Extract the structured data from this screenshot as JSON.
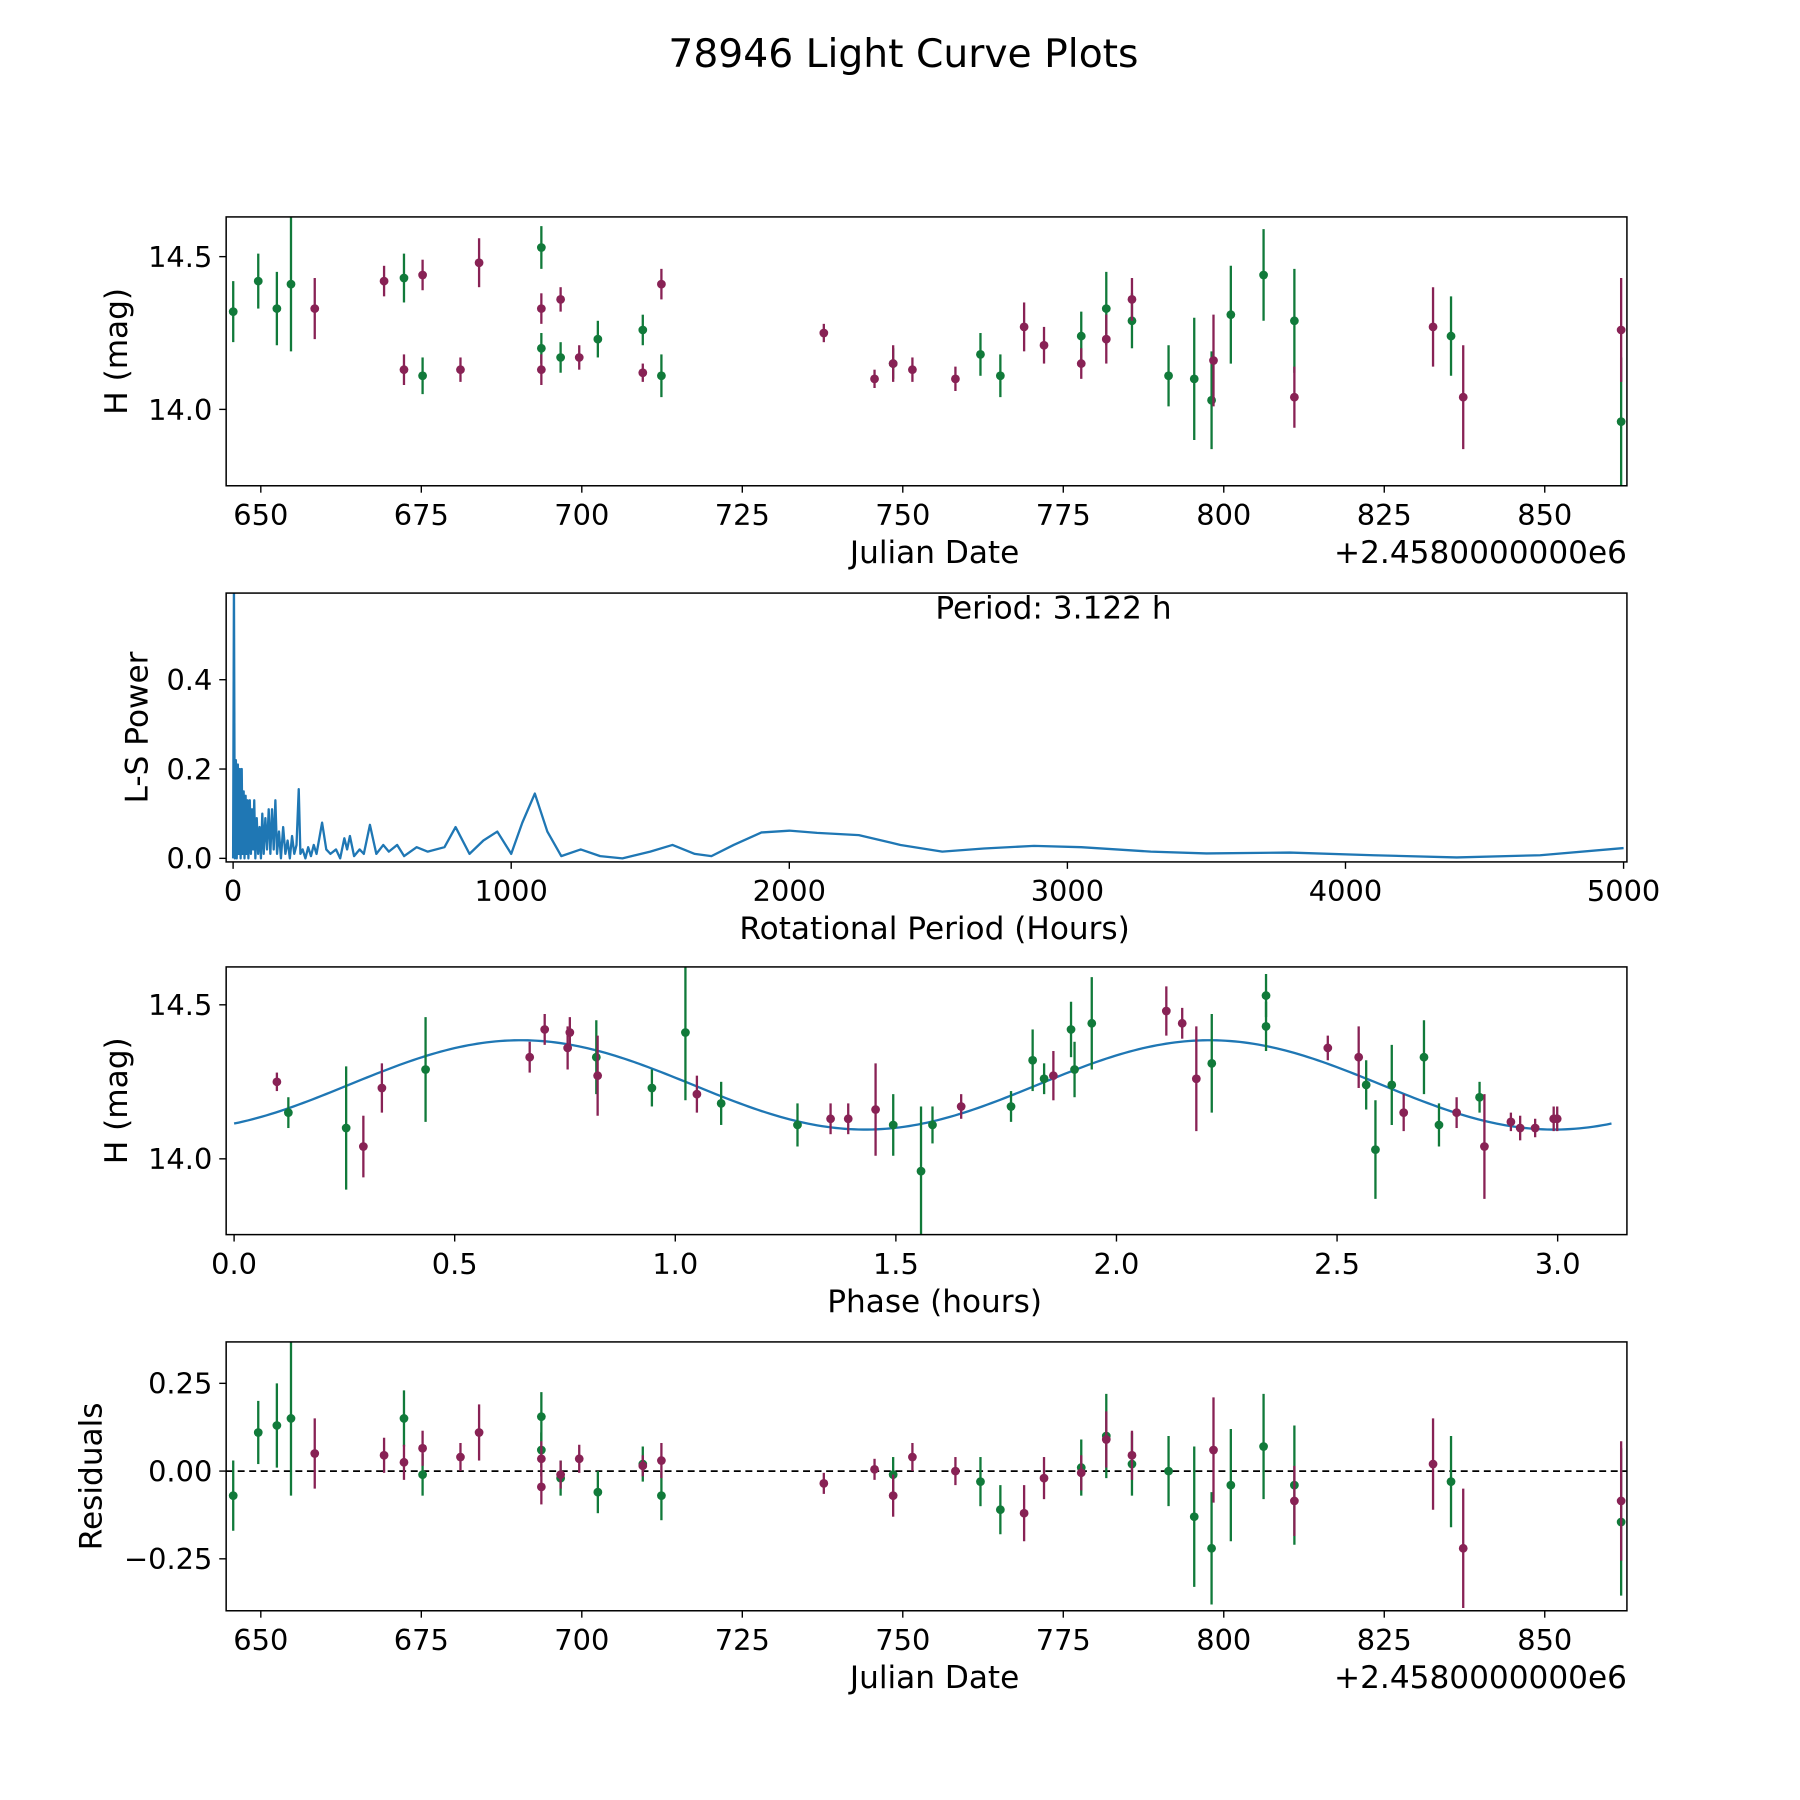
{
  "figure_title": "78946 Light Curve Plots",
  "colors": {
    "green": "#117a3a",
    "purple": "#882255",
    "line": "#1f77b4",
    "zero_line": "#000000"
  },
  "chart_data": [
    {
      "id": "lightcurve",
      "type": "scatter",
      "xlabel": "Julian Date",
      "ylabel": "H (mag)",
      "offset_text": "+2.4580000000e6",
      "xlim": [
        644.6,
        862.8
      ],
      "ylim": [
        13.75,
        14.63
      ],
      "xticks": [
        650,
        675,
        700,
        725,
        750,
        775,
        800,
        825,
        850
      ],
      "xtick_labels": [
        "650",
        "675",
        "700",
        "725",
        "750",
        "775",
        "800",
        "825",
        "850"
      ],
      "yticks": [
        14.0,
        14.5
      ],
      "ytick_labels": [
        "14.0",
        "14.5"
      ]
    },
    {
      "id": "periodogram",
      "type": "line",
      "xlabel": "Rotational Period (Hours)",
      "ylabel": "L-S Power",
      "annotation": "Period: 3.122 h",
      "xlim": [
        -25,
        5012
      ],
      "ylim": [
        -0.008,
        0.594
      ],
      "xticks": [
        0,
        1000,
        2000,
        3000,
        4000,
        5000
      ],
      "xtick_labels": [
        "0",
        "1000",
        "2000",
        "3000",
        "4000",
        "5000"
      ],
      "yticks": [
        0.0,
        0.2,
        0.4
      ],
      "ytick_labels": [
        "0.0",
        "0.2",
        "0.4"
      ],
      "points": [
        [
          0,
          0
        ],
        [
          3,
          0.62
        ],
        [
          6,
          0.0
        ],
        [
          10,
          0.22
        ],
        [
          13,
          0.0
        ],
        [
          17,
          0.21
        ],
        [
          20,
          0.01
        ],
        [
          24,
          0.2
        ],
        [
          27,
          0.0
        ],
        [
          31,
          0.2
        ],
        [
          34,
          0.01
        ],
        [
          38,
          0.15
        ],
        [
          41,
          0
        ],
        [
          45,
          0.14
        ],
        [
          48,
          0.01
        ],
        [
          52,
          0.13
        ],
        [
          55,
          0
        ],
        [
          60,
          0.13
        ],
        [
          64,
          0.01
        ],
        [
          68,
          0.11
        ],
        [
          72,
          0.02
        ],
        [
          76,
          0.13
        ],
        [
          80,
          0
        ],
        [
          85,
          0.09
        ],
        [
          90,
          0.01
        ],
        [
          95,
          0.07
        ],
        [
          100,
          0
        ],
        [
          105,
          0.1
        ],
        [
          110,
          0.01
        ],
        [
          116,
          0.09
        ],
        [
          122,
          0.02
        ],
        [
          128,
          0.11
        ],
        [
          134,
          0.01
        ],
        [
          140,
          0.11
        ],
        [
          146,
          0.02
        ],
        [
          152,
          0.13
        ],
        [
          158,
          0.01
        ],
        [
          165,
          0.06
        ],
        [
          172,
          0
        ],
        [
          180,
          0.07
        ],
        [
          188,
          0.01
        ],
        [
          196,
          0.04
        ],
        [
          204,
          0.0
        ],
        [
          212,
          0.05
        ],
        [
          220,
          0.01
        ],
        [
          228,
          0.03
        ],
        [
          236,
          0.155
        ],
        [
          242,
          0.01
        ],
        [
          250,
          0.02
        ],
        [
          260,
          0.0
        ],
        [
          270,
          0.025
        ],
        [
          280,
          0.005
        ],
        [
          290,
          0.03
        ],
        [
          300,
          0.01
        ],
        [
          320,
          0.08
        ],
        [
          335,
          0.02
        ],
        [
          350,
          0.01
        ],
        [
          370,
          0.02
        ],
        [
          385,
          0.0
        ],
        [
          400,
          0.045
        ],
        [
          410,
          0.02
        ],
        [
          420,
          0.05
        ],
        [
          435,
          0.005
        ],
        [
          455,
          0.02
        ],
        [
          470,
          0.01
        ],
        [
          492,
          0.075
        ],
        [
          515,
          0.01
        ],
        [
          540,
          0.03
        ],
        [
          560,
          0.015
        ],
        [
          590,
          0.03
        ],
        [
          615,
          0.005
        ],
        [
          660,
          0.025
        ],
        [
          700,
          0.015
        ],
        [
          760,
          0.025
        ],
        [
          800,
          0.07
        ],
        [
          850,
          0.01
        ],
        [
          900,
          0.04
        ],
        [
          950,
          0.06
        ],
        [
          1000,
          0.01
        ],
        [
          1040,
          0.08
        ],
        [
          1085,
          0.145
        ],
        [
          1130,
          0.06
        ],
        [
          1180,
          0.005
        ],
        [
          1250,
          0.02
        ],
        [
          1320,
          0.005
        ],
        [
          1400,
          0.0
        ],
        [
          1500,
          0.015
        ],
        [
          1580,
          0.03
        ],
        [
          1660,
          0.01
        ],
        [
          1720,
          0.005
        ],
        [
          1800,
          0.03
        ],
        [
          1900,
          0.058
        ],
        [
          2000,
          0.062
        ],
        [
          2100,
          0.057
        ],
        [
          2250,
          0.052
        ],
        [
          2400,
          0.03
        ],
        [
          2550,
          0.015
        ],
        [
          2700,
          0.022
        ],
        [
          2880,
          0.028
        ],
        [
          3050,
          0.025
        ],
        [
          3300,
          0.015
        ],
        [
          3500,
          0.011
        ],
        [
          3800,
          0.013
        ],
        [
          4100,
          0.007
        ],
        [
          4400,
          0.002
        ],
        [
          4700,
          0.007
        ],
        [
          5000,
          0.023
        ]
      ]
    },
    {
      "id": "phased",
      "type": "scatter",
      "xlabel": "Phase (hours)",
      "ylabel": "H (mag)",
      "xlim": [
        -0.018,
        3.157
      ],
      "ylim": [
        13.754,
        14.623
      ],
      "xticks": [
        0.0,
        0.5,
        1.0,
        1.5,
        2.0,
        2.5,
        3.0
      ],
      "xtick_labels": [
        "0.0",
        "0.5",
        "1.0",
        "1.5",
        "2.0",
        "2.5",
        "3.0"
      ],
      "yticks": [
        14.0,
        14.5
      ],
      "ytick_labels": [
        "14.0",
        "14.5"
      ],
      "model": {
        "mean": 14.24,
        "amplitude": 0.145,
        "peak_phase": 0.65,
        "period": 3.122,
        "harmonic": 2
      }
    },
    {
      "id": "residuals",
      "type": "scatter",
      "xlabel": "Julian Date",
      "ylabel": "Residuals",
      "offset_text": "+2.4580000000e6",
      "xlim": [
        644.6,
        862.8
      ],
      "ylim": [
        -0.398,
        0.368
      ],
      "xticks": [
        650,
        675,
        700,
        725,
        750,
        775,
        800,
        825,
        850
      ],
      "xtick_labels": [
        "650",
        "675",
        "700",
        "725",
        "750",
        "775",
        "800",
        "825",
        "850"
      ],
      "yticks": [
        -0.25,
        0.0,
        0.25
      ],
      "ytick_labels": [
        "−0.25",
        "0.00",
        "0.25"
      ]
    }
  ],
  "observations": {
    "fields": [
      "jd_offset",
      "mag",
      "err",
      "residual",
      "phase_hours"
    ],
    "green": [
      [
        645.7,
        14.32,
        0.1,
        -0.07,
        1.81
      ],
      [
        649.6,
        14.42,
        0.09,
        0.11,
        1.897
      ],
      [
        652.5,
        14.33,
        0.12,
        0.13,
        2.697
      ],
      [
        654.7,
        14.41,
        0.22,
        0.15,
        1.023
      ],
      [
        672.3,
        14.43,
        0.08,
        0.15,
        2.339
      ],
      [
        675.2,
        14.11,
        0.06,
        -0.01,
        1.583
      ],
      [
        693.7,
        14.53,
        0.07,
        0.155,
        2.339
      ],
      [
        693.7,
        14.2,
        0.05,
        0.06,
        2.823
      ],
      [
        696.7,
        14.17,
        0.05,
        -0.02,
        1.761
      ],
      [
        702.5,
        14.23,
        0.06,
        -0.06,
        0.947
      ],
      [
        709.5,
        14.26,
        0.05,
        0.02,
        1.836
      ],
      [
        712.4,
        14.11,
        0.07,
        -0.07,
        1.277
      ],
      [
        748.5,
        14.15,
        0.05,
        -0.01,
        0.123
      ],
      [
        762.1,
        14.18,
        0.07,
        -0.03,
        1.104
      ],
      [
        765.2,
        14.11,
        0.07,
        -0.11,
        2.731
      ],
      [
        777.8,
        14.24,
        0.08,
        0.01,
        2.566
      ],
      [
        781.7,
        14.33,
        0.12,
        0.1,
        0.821
      ],
      [
        785.7,
        14.29,
        0.09,
        0.02,
        1.905
      ],
      [
        791.4,
        14.11,
        0.1,
        0.0,
        1.494
      ],
      [
        795.4,
        14.1,
        0.2,
        -0.13,
        0.254
      ],
      [
        798.1,
        14.03,
        0.16,
        -0.22,
        2.587
      ],
      [
        801.1,
        14.31,
        0.16,
        -0.04,
        2.216
      ],
      [
        806.2,
        14.44,
        0.15,
        0.07,
        1.944
      ],
      [
        811.0,
        14.29,
        0.17,
        -0.04,
        0.434
      ],
      [
        835.4,
        14.24,
        0.13,
        -0.03,
        2.624
      ],
      [
        861.9,
        13.96,
        0.21,
        -0.145,
        1.557
      ]
    ],
    "purple": [
      [
        658.4,
        14.33,
        0.1,
        0.05,
        2.549
      ],
      [
        669.2,
        14.42,
        0.05,
        0.045,
        0.704
      ],
      [
        672.3,
        14.13,
        0.05,
        0.025,
        1.392
      ],
      [
        675.2,
        14.44,
        0.05,
        0.065,
        2.149
      ],
      [
        681.1,
        14.13,
        0.04,
        0.04,
        2.991
      ],
      [
        684.0,
        14.48,
        0.08,
        0.11,
        2.113
      ],
      [
        693.7,
        14.33,
        0.05,
        0.035,
        0.67
      ],
      [
        693.7,
        14.13,
        0.05,
        -0.045,
        1.352
      ],
      [
        696.7,
        14.36,
        0.04,
        -0.01,
        2.479
      ],
      [
        699.6,
        14.17,
        0.04,
        0.035,
        1.648
      ],
      [
        709.5,
        14.12,
        0.03,
        0.015,
        2.894
      ],
      [
        712.4,
        14.41,
        0.05,
        0.03,
        0.761
      ],
      [
        737.7,
        14.25,
        0.03,
        -0.035,
        0.097
      ],
      [
        745.6,
        14.1,
        0.03,
        0.005,
        2.949
      ],
      [
        748.5,
        14.15,
        0.06,
        -0.07,
        2.651
      ],
      [
        751.5,
        14.13,
        0.04,
        0.04,
        2.999
      ],
      [
        758.2,
        14.1,
        0.04,
        0.0,
        2.915
      ],
      [
        768.9,
        14.27,
        0.08,
        -0.12,
        1.857
      ],
      [
        772.0,
        14.21,
        0.06,
        -0.02,
        1.049
      ],
      [
        777.8,
        14.15,
        0.05,
        -0.005,
        2.771
      ],
      [
        781.7,
        14.23,
        0.08,
        0.09,
        0.335
      ],
      [
        785.7,
        14.36,
        0.07,
        0.045,
        0.756
      ],
      [
        798.4,
        14.16,
        0.15,
        0.06,
        1.454
      ],
      [
        811.0,
        14.04,
        0.1,
        -0.085,
        0.293
      ],
      [
        832.6,
        14.27,
        0.13,
        0.02,
        0.824
      ],
      [
        837.3,
        14.04,
        0.17,
        -0.22,
        2.834
      ],
      [
        861.9,
        14.26,
        0.17,
        -0.085,
        2.181
      ]
    ]
  }
}
